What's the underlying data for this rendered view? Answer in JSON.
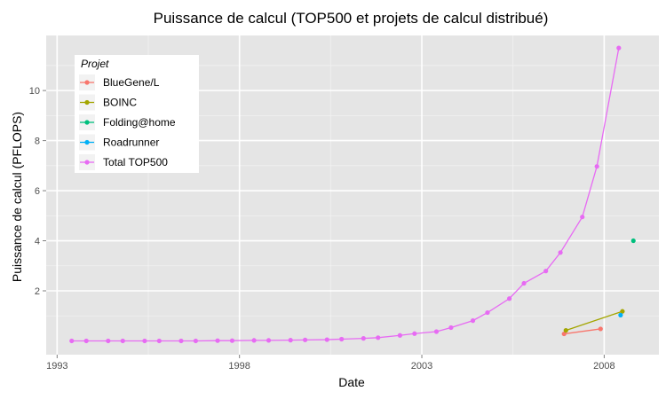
{
  "chart_data": {
    "type": "line",
    "title": "Puissance de calcul (TOP500 et projets de calcul distribué)",
    "xlabel": "Date",
    "ylabel": "Puissance de calcul (PFLOPS)",
    "xlim": [
      1992.7,
      2009.5
    ],
    "ylim": [
      -0.55,
      12.2
    ],
    "x_ticks": [
      1993,
      1998,
      2003,
      2008
    ],
    "x_tick_labels": [
      "1993",
      "1998",
      "2003",
      "2008"
    ],
    "y_ticks": [
      2,
      4,
      6,
      8,
      10
    ],
    "y_tick_labels": [
      "2",
      "4",
      "6",
      "8",
      "10"
    ],
    "grid": true,
    "legend": {
      "title": "Projet",
      "position": "top-left"
    },
    "series": [
      {
        "name": "BlueGene/L",
        "color": "#F8766D",
        "points": [
          [
            2006.9,
            0.28
          ],
          [
            2007.9,
            0.48
          ]
        ]
      },
      {
        "name": "BOINC",
        "color": "#A3A500",
        "points": [
          [
            2006.95,
            0.42
          ],
          [
            2008.5,
            1.18
          ]
        ]
      },
      {
        "name": "Folding@home",
        "color": "#00BF7D",
        "points": [
          [
            2008.8,
            4.0
          ]
        ]
      },
      {
        "name": "Roadrunner",
        "color": "#00B0F6",
        "points": [
          [
            2008.45,
            1.03
          ]
        ]
      },
      {
        "name": "Total TOP500",
        "color": "#E76BF3",
        "points": [
          [
            1993.4,
            0.0
          ],
          [
            1993.8,
            0.0
          ],
          [
            1994.4,
            0.0
          ],
          [
            1994.8,
            0.0
          ],
          [
            1995.4,
            0.0
          ],
          [
            1995.8,
            0.0
          ],
          [
            1996.4,
            0.0
          ],
          [
            1996.8,
            0.0
          ],
          [
            1997.4,
            0.01
          ],
          [
            1997.8,
            0.01
          ],
          [
            1998.4,
            0.02
          ],
          [
            1998.8,
            0.02
          ],
          [
            1999.4,
            0.03
          ],
          [
            1999.8,
            0.04
          ],
          [
            2000.4,
            0.05
          ],
          [
            2000.8,
            0.07
          ],
          [
            2001.4,
            0.1
          ],
          [
            2001.8,
            0.13
          ],
          [
            2002.4,
            0.22
          ],
          [
            2002.8,
            0.29
          ],
          [
            2003.4,
            0.37
          ],
          [
            2003.8,
            0.53
          ],
          [
            2004.4,
            0.81
          ],
          [
            2004.8,
            1.13
          ],
          [
            2005.4,
            1.69
          ],
          [
            2005.8,
            2.3
          ],
          [
            2006.4,
            2.79
          ],
          [
            2006.8,
            3.53
          ],
          [
            2007.4,
            4.95
          ],
          [
            2007.8,
            6.97
          ],
          [
            2008.4,
            11.7
          ]
        ]
      }
    ]
  }
}
